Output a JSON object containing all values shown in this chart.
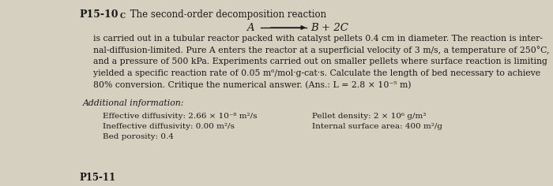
{
  "background_color": "#d6d0c0",
  "title_bold": "P15-10",
  "title_sub": "C",
  "title_rest": " The second-order decomposition reaction",
  "left_col": [
    "Effective diffusivity: 2.66 × 10⁻⁸ m²/s",
    "Ineffective diffusivity: 0.00 m²/s",
    "Bed porosity: 0.4"
  ],
  "right_col": [
    "Pellet density: 2 × 10⁶ g/m³",
    "Internal surface area: 400 m²/g"
  ],
  "font_size_body": 7.8,
  "font_size_title": 9.0,
  "font_size_reaction": 9.5,
  "font_size_additional": 7.8,
  "text_color": "#1a1a1a",
  "fig_width": 7.0,
  "fig_height": 2.36,
  "dpi": 100
}
